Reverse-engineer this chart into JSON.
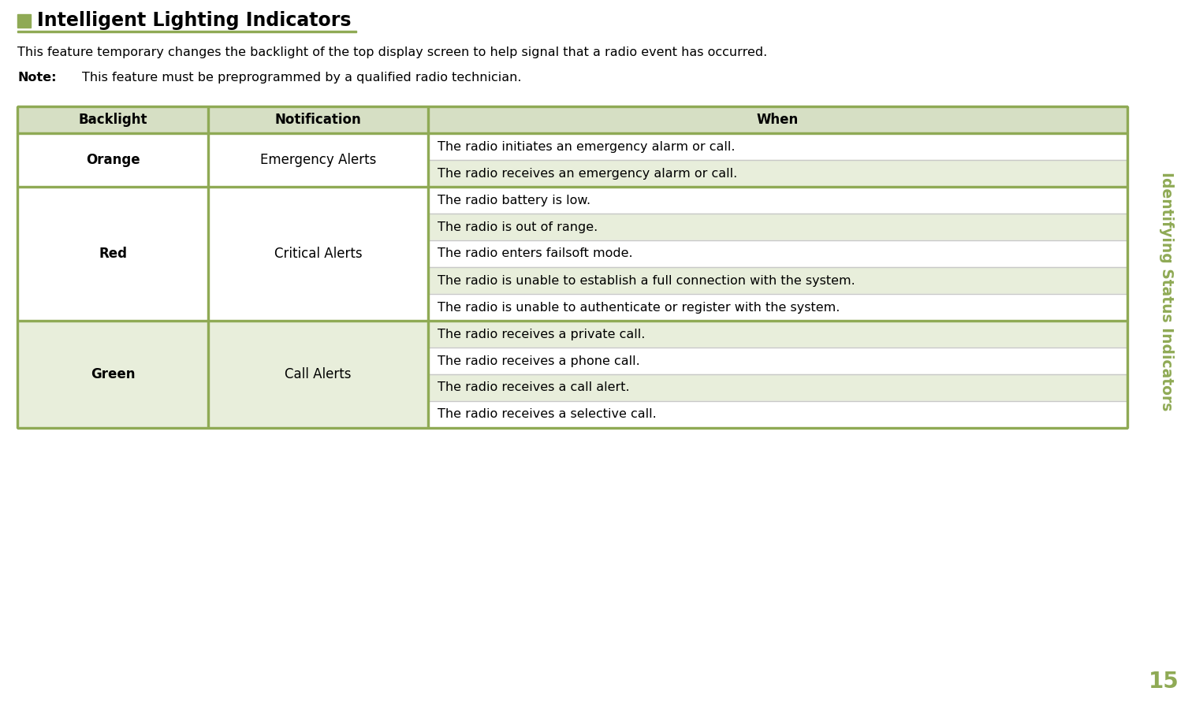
{
  "title": "Intelligent Lighting Indicators",
  "title_square_color": "#8faa55",
  "title_underline_color": "#8faa55",
  "body_text": "This feature temporary changes the backlight of the top display screen to help signal that a radio event has occurred.",
  "note_label": "Note:",
  "note_text": "This feature must be preprogrammed by a qualified radio technician.",
  "sidebar_text": "Identifying Status Indicators",
  "sidebar_color": "#8faa55",
  "page_number": "15",
  "page_number_color": "#8faa55",
  "table_header_bg": "#d6dfc4",
  "table_border_color": "#8faa55",
  "table_inner_line_color": "#c8c8c8",
  "table_alt_bg": "#e8eedb",
  "table_white_bg": "#ffffff",
  "col_headers": [
    "Backlight",
    "Notification",
    "When"
  ],
  "rows": [
    {
      "backlight": "Orange",
      "notification": "Emergency Alerts",
      "when_items": [
        "The radio initiates an emergency alarm or call.",
        "The radio receives an emergency alarm or call."
      ]
    },
    {
      "backlight": "Red",
      "notification": "Critical Alerts",
      "when_items": [
        "The radio battery is low.",
        "The radio is out of range.",
        "The radio enters failsoft mode.",
        "The radio is unable to establish a full connection with the system.",
        "The radio is unable to authenticate or register with the system."
      ]
    },
    {
      "backlight": "Green",
      "notification": "Call Alerts",
      "when_items": [
        "The radio receives a private call.",
        "The radio receives a phone call.",
        "The radio receives a call alert.",
        "The radio receives a selective call."
      ]
    }
  ]
}
